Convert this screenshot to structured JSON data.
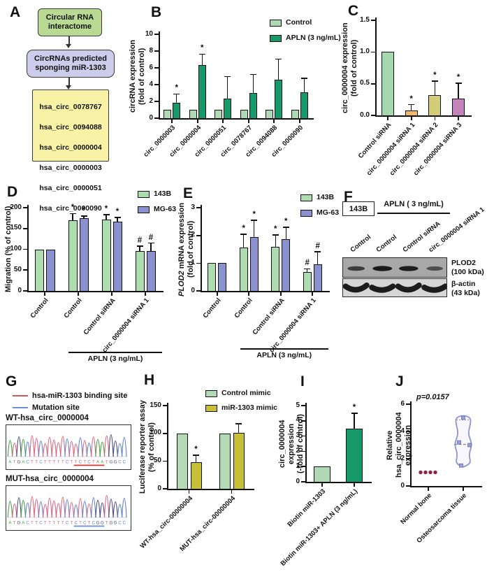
{
  "panels": {
    "A": {
      "letter": "A",
      "box1": "Circular RNA\ninteractome",
      "box2": "CircRNAs predicted\nsponging miR-1303",
      "list": [
        "hsa_circ_0078767",
        "hsa_circ_0094088",
        "hsa_circ_0000004",
        "hsa_circ_0000003",
        "hsa_circ_0000051",
        "hsa_circ_0000090"
      ]
    },
    "B": {
      "letter": "B"
    },
    "C": {
      "letter": "C"
    },
    "D": {
      "letter": "D"
    },
    "E": {
      "letter": "E"
    },
    "F": {
      "letter": "F"
    },
    "G": {
      "letter": "G"
    },
    "H": {
      "letter": "H"
    },
    "I": {
      "letter": "I"
    },
    "J": {
      "letter": "J"
    }
  },
  "chart_data": [
    {
      "id": "B",
      "type": "bar",
      "ylabel": "circRNA expression\n(fold of control)",
      "ylim": [
        0,
        10
      ],
      "yticks": [
        "0",
        "2",
        "4",
        "6",
        "8",
        "10"
      ],
      "categories": [
        "circ_0000003",
        "circ_0000004",
        "circ_0000051",
        "circ_0078767",
        "circ_0094088",
        "circ_0000090"
      ],
      "series": [
        {
          "name": "Control",
          "color": "#aed9b4",
          "values": [
            1,
            1,
            1,
            1,
            1,
            1
          ],
          "errors": [
            0,
            0,
            0,
            0,
            0,
            0
          ],
          "sig": [
            "",
            "",
            "",
            "",
            "",
            ""
          ]
        },
        {
          "name": "APLN (3 ng/mL)",
          "color": "#179a6b",
          "values": [
            1.85,
            6.35,
            2.3,
            3.0,
            4.55,
            3.05
          ],
          "errors": [
            1.05,
            1.3,
            2.65,
            2.2,
            2.5,
            1.7
          ],
          "sig": [
            "*",
            "*",
            "",
            "",
            "",
            ""
          ]
        }
      ],
      "legend_position": "top-right"
    },
    {
      "id": "C",
      "type": "bar",
      "ylabel": "circ_0000004 expression\n(fold of control)",
      "ylim": [
        0,
        1.5
      ],
      "yticks": [
        "0.0",
        "0.5",
        "1.0",
        "1.5"
      ],
      "categories": [
        "Control siRNA",
        "circ_0000004 siRNA 1",
        "circ_0000004 siRNA 2",
        "circ_0000004 siRNA 3"
      ],
      "bar_colors": [
        "#a5d8ae",
        "#f3b964",
        "#d3cc79",
        "#c583bd"
      ],
      "values": [
        1.0,
        0.08,
        0.32,
        0.27
      ],
      "errors": [
        0,
        0.09,
        0.22,
        0.24
      ],
      "sig": [
        "",
        "*",
        "*",
        "*"
      ]
    },
    {
      "id": "D",
      "type": "bar",
      "ylabel": "Migration (% of control)",
      "ylim": [
        0,
        200
      ],
      "yticks": [
        "0",
        "50",
        "100",
        "150",
        "200"
      ],
      "categories": [
        "Control",
        "Control",
        "Control siRNA",
        "circ_0000004 siRNA 1"
      ],
      "series": [
        {
          "name": "143B",
          "color": "#aedbb0",
          "values": [
            100,
            170,
            172,
            95
          ],
          "errors": [
            0,
            16,
            11,
            13
          ],
          "sig": [
            "",
            "*",
            "*",
            "#"
          ]
        },
        {
          "name": "MG-63",
          "color": "#8b90ce",
          "values": [
            100,
            174,
            167,
            95
          ],
          "errors": [
            0,
            6,
            10,
            20
          ],
          "sig": [
            "",
            "*",
            "*",
            "#"
          ]
        }
      ],
      "bottom_annotation": {
        "label": "APLN (3 ng/mL)",
        "from": 1,
        "to": 3
      },
      "legend_position": "top-right"
    },
    {
      "id": "E",
      "type": "bar",
      "ylabel": "PLOD2 mRNA expression\n(fold of control)",
      "ylabel_italic": "PLOD2",
      "ylim": [
        0,
        3
      ],
      "yticks": [
        "0",
        "1",
        "2",
        "3"
      ],
      "categories": [
        "Control",
        "Control",
        "Control siRNA",
        "circ_0000004 siRNA 1"
      ],
      "series": [
        {
          "name": "143B",
          "color": "#aedbb0",
          "values": [
            1,
            1.57,
            1.6,
            0.67
          ],
          "errors": [
            0,
            0.48,
            0.42,
            0.13
          ],
          "sig": [
            "",
            "*",
            "*",
            "#"
          ]
        },
        {
          "name": "MG-63",
          "color": "#8b90ce",
          "values": [
            1,
            1.93,
            1.87,
            0.95
          ],
          "errors": [
            0,
            0.62,
            0.43,
            0.47
          ],
          "sig": [
            "",
            "*",
            "*",
            "#"
          ]
        }
      ],
      "bottom_annotation": {
        "label": "APLN (3 ng/mL)",
        "from": 1,
        "to": 3
      },
      "legend_position": "top-right"
    },
    {
      "id": "H",
      "type": "bar",
      "ylabel": "Luciferase reporter assay\n(% of control)",
      "ylim": [
        0,
        150
      ],
      "yticks": [
        "0",
        "50",
        "100",
        "150"
      ],
      "categories": [
        "WT-hsa_circ-00000004",
        "MUT-hsa_circ-00000004"
      ],
      "series": [
        {
          "name": "Control mimic",
          "color": "#b3dab4",
          "values": [
            100,
            100
          ],
          "errors": [
            0,
            0
          ],
          "sig": [
            "",
            ""
          ]
        },
        {
          "name": "miR-1303 mimic",
          "color": "#c6bf37",
          "values": [
            48,
            101
          ],
          "errors": [
            13,
            16
          ],
          "sig": [
            "*",
            ""
          ]
        }
      ],
      "legend_position": "top-right"
    },
    {
      "id": "I",
      "type": "bar",
      "ylabel": "circ_0000004 expression\n(-fold of control)",
      "ylim": [
        0,
        5
      ],
      "yticks": [
        "0",
        "1",
        "2",
        "3",
        "4",
        "5"
      ],
      "categories": [
        "Biotin miR-1303",
        "Biotin miR-1303+ APLN (3 ng/mL)"
      ],
      "bar_colors": [
        "#aed9b4",
        "#179a6b"
      ],
      "values": [
        1,
        3.5
      ],
      "errors": [
        0,
        1.0
      ],
      "sig": [
        "",
        "*"
      ]
    },
    {
      "id": "J",
      "type": "violin",
      "pvalue": "p=0.0157",
      "ylabel": "Relative hsa_circ_0000004\nexpression",
      "ylim": [
        0,
        6
      ],
      "yticks": [
        "0",
        "2",
        "4",
        "6"
      ],
      "categories": [
        "Normal bone",
        "Osteosarcoma tissue"
      ],
      "groups": [
        {
          "name": "Normal bone",
          "marker": "circle",
          "color": "#8c2342",
          "points": [
            1,
            1,
            1,
            1
          ],
          "jitter": [
            -11,
            -4,
            3,
            10
          ]
        },
        {
          "name": "Osteosarcoma tissue",
          "marker": "square",
          "color": "#9ba0d8",
          "points": [
            1.5,
            3.0,
            3.2,
            5.0
          ],
          "jitter": [
            -3,
            9,
            -6,
            0
          ],
          "violin": {
            "range": [
              1.4,
              5.15
            ],
            "median": 3.05,
            "upper": 4.85,
            "profile": [
              [
                1.45,
                3
              ],
              [
                1.7,
                11
              ],
              [
                2.3,
                8
              ],
              [
                2.95,
                12
              ],
              [
                3.3,
                11
              ],
              [
                3.85,
                7
              ],
              [
                4.5,
                10
              ],
              [
                4.95,
                11
              ],
              [
                5.15,
                4
              ]
            ]
          }
        }
      ]
    }
  ],
  "blot": {
    "cell_line": "143B",
    "treatment": "APLN ( 3 ng/mL)",
    "lanes": [
      "Control",
      "Control",
      "Control siRNA",
      "circ_0000004 siRNA 1"
    ],
    "targets": [
      {
        "name": "PLOD2",
        "size": "(100 kDa)",
        "intensities": [
          0.62,
          1,
          0.95,
          0.42
        ]
      },
      {
        "name": "β-actin",
        "size": "(43 kDa)",
        "intensities": [
          1,
          1,
          1,
          1
        ]
      }
    ]
  },
  "sequencing": {
    "legend": [
      {
        "label": "hsa-miR-1303 binding site",
        "color": "#e05555"
      },
      {
        "label": "Mutation site",
        "color": "#6b8fd4"
      }
    ],
    "traces": [
      {
        "title": "WT-hsa_circ_0000004",
        "sequence": "ATGACTTCTTTTTCTTCTCTAATGGCC",
        "underline_start": 15,
        "underline_end": 21,
        "underline_color": "#d43c3c"
      },
      {
        "title": "MUT-hsa_circ_0000004",
        "sequence": "ATGACTTCTTTTTCTCTCTCGGTGGCC",
        "underline_start": 15,
        "underline_end": 21,
        "underline_color": "#6b8fd4"
      }
    ]
  }
}
